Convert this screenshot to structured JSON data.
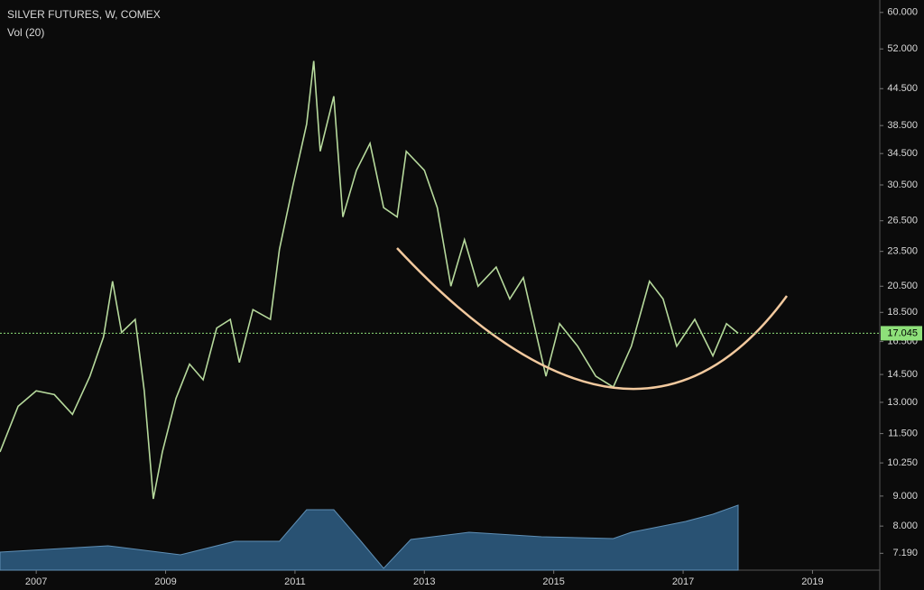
{
  "chart_data": {
    "type": "line",
    "title": "SILVER FUTURES, W, COMEX",
    "log_scale": true,
    "x": [
      2006.44,
      2006.72,
      2007.0,
      2007.28,
      2007.56,
      2007.83,
      2008.04,
      2008.18,
      2008.32,
      2008.53,
      2008.67,
      2008.81,
      2008.95,
      2009.16,
      2009.37,
      2009.58,
      2009.79,
      2010.0,
      2010.14,
      2010.35,
      2010.62,
      2010.76,
      2010.97,
      2011.18,
      2011.29,
      2011.39,
      2011.6,
      2011.74,
      2011.95,
      2012.16,
      2012.37,
      2012.58,
      2012.72,
      2013.0,
      2013.2,
      2013.41,
      2013.62,
      2013.83,
      2014.11,
      2014.32,
      2014.53,
      2014.74,
      2014.88,
      2015.09,
      2015.37,
      2015.65,
      2015.92,
      2016.2,
      2016.48,
      2016.69,
      2016.9,
      2017.18,
      2017.46,
      2017.67,
      2017.85
    ],
    "series": [
      {
        "color": "#b6d99c",
        "values": [
          10.7,
          12.8,
          13.6,
          13.4,
          12.4,
          14.4,
          16.8,
          20.9,
          17.1,
          18.0,
          13.6,
          8.9,
          10.7,
          13.2,
          15.1,
          14.2,
          17.4,
          18.0,
          15.2,
          18.7,
          18.0,
          23.7,
          30.5,
          38.7,
          49.6,
          34.8,
          43.2,
          26.9,
          32.3,
          35.9,
          27.9,
          26.9,
          34.8,
          32.3,
          27.9,
          20.5,
          24.6,
          20.5,
          22.1,
          19.5,
          21.2,
          16.8,
          14.4,
          17.7,
          16.2,
          14.4,
          13.8,
          16.2,
          20.9,
          19.5,
          16.2,
          18.0,
          15.6,
          17.7,
          17.045
        ]
      }
    ],
    "last_price": 17.045,
    "last_price_color": "#8ee07a",
    "volume": {
      "name": "Vol (20)",
      "color": "#2f5f86",
      "x": [
        2006.44,
        2008.11,
        2009.23,
        2010.07,
        2010.76,
        2011.18,
        2011.6,
        2012.02,
        2012.37,
        2012.79,
        2013.69,
        2014.81,
        2015.92,
        2016.2,
        2017.04,
        2017.46,
        2017.85
      ],
      "values": [
        20,
        27,
        17,
        32,
        32,
        67,
        67,
        32,
        2,
        34,
        42,
        37,
        35,
        42,
        54,
        62,
        72
      ]
    },
    "xlim": [
      2006.44,
      2020.04
    ],
    "xticks": [
      2007,
      2009,
      2011,
      2013,
      2015,
      2017,
      2019
    ],
    "ylim": [
      6.73,
      61.9
    ],
    "yticks": [
      {
        "value": 60,
        "label": "60.000"
      },
      {
        "value": 52,
        "label": "52.000"
      },
      {
        "value": 44.5,
        "label": "44.500"
      },
      {
        "value": 38.5,
        "label": "38.500"
      },
      {
        "value": 34.5,
        "label": "34.500"
      },
      {
        "value": 30.5,
        "label": "30.500"
      },
      {
        "value": 26.5,
        "label": "26.500"
      },
      {
        "value": 23.5,
        "label": "23.500"
      },
      {
        "value": 20.5,
        "label": "20.500"
      },
      {
        "value": 18.5,
        "label": "18.500"
      },
      {
        "value": 16.5,
        "label": "16.500"
      },
      {
        "value": 14.5,
        "label": "14.500"
      },
      {
        "value": 13,
        "label": "13.000"
      },
      {
        "value": 11.5,
        "label": "11.500"
      },
      {
        "value": 10.25,
        "label": "10.250"
      },
      {
        "value": 9,
        "label": "9.000"
      },
      {
        "value": 8,
        "label": "8.000"
      },
      {
        "value": 7.19,
        "label": "7.190"
      }
    ]
  }
}
